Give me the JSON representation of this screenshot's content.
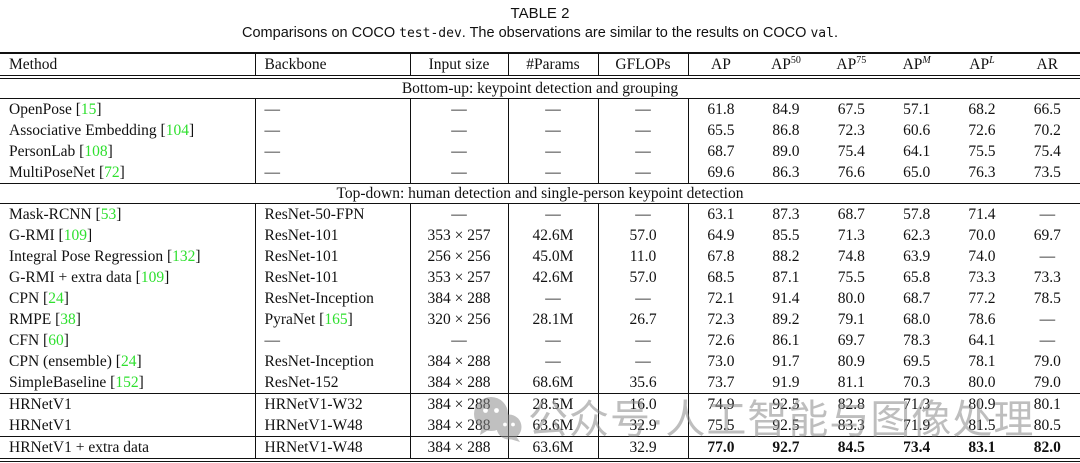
{
  "title": "TABLE 2",
  "caption": {
    "parts": [
      {
        "text": "Comparisons on COCO ",
        "mono": false
      },
      {
        "text": "test-dev",
        "mono": true
      },
      {
        "text": ". The observations are similar to the results on COCO ",
        "mono": false
      },
      {
        "text": "val",
        "mono": true
      },
      {
        "text": ".",
        "mono": false
      }
    ]
  },
  "colors": {
    "citation_green": "#2fe02f",
    "watermark_gray": "#8a8a8a"
  },
  "watermark": {
    "icon": "wechat-icon",
    "text": "公众号·人工智能与图像处理"
  },
  "table": {
    "header": [
      {
        "key": "method",
        "label": "Method",
        "align": "left"
      },
      {
        "key": "backbone",
        "label": "Backbone",
        "align": "left"
      },
      {
        "key": "input-size",
        "label": "Input size",
        "align": "center"
      },
      {
        "key": "params",
        "label": "#Params",
        "align": "center"
      },
      {
        "key": "gflops",
        "label": "GFLOPs",
        "align": "center"
      },
      {
        "key": "ap",
        "label": "AP",
        "align": "center"
      },
      {
        "key": "ap50",
        "label": "AP",
        "sup": "50",
        "align": "center"
      },
      {
        "key": "ap75",
        "label": "AP",
        "sup": "75",
        "align": "center"
      },
      {
        "key": "apm",
        "label": "AP",
        "sup": "M",
        "sup_italic": true,
        "align": "center"
      },
      {
        "key": "apl",
        "label": "AP",
        "sup": "L",
        "sup_italic": true,
        "align": "center"
      },
      {
        "key": "ar",
        "label": "AR",
        "align": "center"
      }
    ],
    "sections": [
      {
        "header": "Bottom-up: keypoint detection and grouping",
        "rows": [
          {
            "method": "OpenPose",
            "cite": "15",
            "backbone": "—",
            "input_size": "—",
            "params": "—",
            "gflops": "—",
            "values": [
              "61.8",
              "84.9",
              "67.5",
              "57.1",
              "68.2",
              "66.5"
            ]
          },
          {
            "method": "Associative Embedding",
            "cite": "104",
            "backbone": "—",
            "input_size": "—",
            "params": "—",
            "gflops": "—",
            "values": [
              "65.5",
              "86.8",
              "72.3",
              "60.6",
              "72.6",
              "70.2"
            ]
          },
          {
            "method": "PersonLab",
            "cite": "108",
            "backbone": "—",
            "input_size": "—",
            "params": "—",
            "gflops": "—",
            "values": [
              "68.7",
              "89.0",
              "75.4",
              "64.1",
              "75.5",
              "75.4"
            ]
          },
          {
            "method": "MultiPoseNet",
            "cite": "72",
            "backbone": "—",
            "input_size": "—",
            "params": "—",
            "gflops": "—",
            "values": [
              "69.6",
              "86.3",
              "76.6",
              "65.0",
              "76.3",
              "73.5"
            ]
          }
        ]
      },
      {
        "header": "Top-down: human detection and single-person keypoint detection",
        "rows": [
          {
            "method": "Mask-RCNN",
            "cite": "53",
            "backbone": "ResNet-50-FPN",
            "input_size": "—",
            "params": "—",
            "gflops": "—",
            "values": [
              "63.1",
              "87.3",
              "68.7",
              "57.8",
              "71.4",
              "—"
            ]
          },
          {
            "method": "G-RMI",
            "cite": "109",
            "backbone": "ResNet-101",
            "input_size": "353 × 257",
            "params": "42.6M",
            "gflops": "57.0",
            "values": [
              "64.9",
              "85.5",
              "71.3",
              "62.3",
              "70.0",
              "69.7"
            ]
          },
          {
            "method": "Integral Pose Regression",
            "cite": "132",
            "backbone": "ResNet-101",
            "input_size": "256 × 256",
            "params": "45.0M",
            "gflops": "11.0",
            "values": [
              "67.8",
              "88.2",
              "74.8",
              "63.9",
              "74.0",
              "—"
            ]
          },
          {
            "method": "G-RMI + extra data",
            "cite": "109",
            "backbone": "ResNet-101",
            "input_size": "353 × 257",
            "params": "42.6M",
            "gflops": "57.0",
            "values": [
              "68.5",
              "87.1",
              "75.5",
              "65.8",
              "73.3",
              "73.3"
            ]
          },
          {
            "method": "CPN",
            "cite": "24",
            "backbone": "ResNet-Inception",
            "input_size": "384 × 288",
            "params": "—",
            "gflops": "—",
            "values": [
              "72.1",
              "91.4",
              "80.0",
              "68.7",
              "77.2",
              "78.5"
            ]
          },
          {
            "method": "RMPE",
            "cite": "38",
            "backbone": "PyraNet",
            "backbone_cite": "165",
            "input_size": "320 × 256",
            "params": "28.1M",
            "gflops": "26.7",
            "values": [
              "72.3",
              "89.2",
              "79.1",
              "68.0",
              "78.6",
              "—"
            ]
          },
          {
            "method": "CFN",
            "cite": "60",
            "backbone": "—",
            "input_size": "—",
            "params": "—",
            "gflops": "—",
            "values": [
              "72.6",
              "86.1",
              "69.7",
              "78.3",
              "64.1",
              "—"
            ]
          },
          {
            "method": "CPN (ensemble)",
            "cite": "24",
            "backbone": "ResNet-Inception",
            "input_size": "384 × 288",
            "params": "—",
            "gflops": "—",
            "values": [
              "73.0",
              "91.7",
              "80.9",
              "69.5",
              "78.1",
              "79.0"
            ]
          },
          {
            "method": "SimpleBaseline",
            "cite": "152",
            "backbone": "ResNet-152",
            "input_size": "384 × 288",
            "params": "68.6M",
            "gflops": "35.6",
            "values": [
              "73.7",
              "91.9",
              "81.1",
              "70.3",
              "80.0",
              "79.0"
            ]
          },
          {
            "method": "HRNetV1",
            "backbone": "HRNetV1-W32",
            "input_size": "384 × 288",
            "params": "28.5M",
            "gflops": "16.0",
            "divider_before": true,
            "values": [
              "74.9",
              "92.5",
              "82.8",
              "71.3",
              "80.9",
              "80.1"
            ]
          },
          {
            "method": "HRNetV1",
            "backbone": "HRNetV1-W48",
            "input_size": "384 × 288",
            "params": "63.6M",
            "gflops": "32.9",
            "values": [
              "75.5",
              "92.5",
              "83.3",
              "71.9",
              "81.5",
              "80.5"
            ]
          },
          {
            "method": "HRNetV1 + extra data",
            "backbone": "HRNetV1-W48",
            "input_size": "384 × 288",
            "params": "63.6M",
            "gflops": "32.9",
            "divider_before": true,
            "bold": true,
            "values": [
              "77.0",
              "92.7",
              "84.5",
              "73.4",
              "83.1",
              "82.0"
            ]
          }
        ]
      }
    ]
  }
}
